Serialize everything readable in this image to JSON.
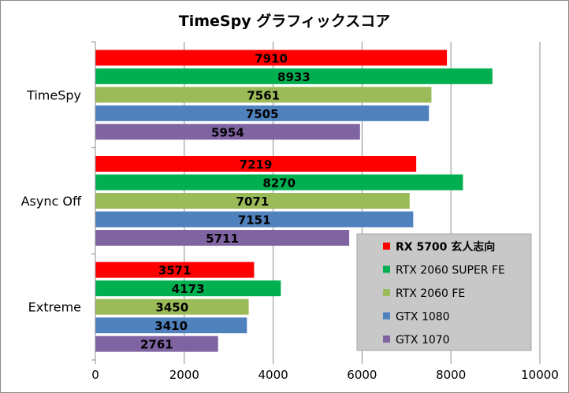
{
  "chart_data": {
    "type": "bar",
    "orientation": "horizontal",
    "title": "TimeSpy グラフィックスコア",
    "xlabel": "",
    "ylabel": "",
    "categories": [
      "TimeSpy",
      "Async Off",
      "Extreme"
    ],
    "xlim": [
      0,
      10000
    ],
    "x_ticks": [
      0,
      2000,
      4000,
      6000,
      8000,
      10000
    ],
    "grid": true,
    "legend_position": "bottom-right",
    "series": [
      {
        "name": "RX 5700 玄人志向",
        "color": "#ff0000",
        "bold": true,
        "values": [
          7910,
          7219,
          3571
        ]
      },
      {
        "name": "RTX 2060 SUPER FE",
        "color": "#00b050",
        "values": [
          8933,
          8270,
          4173
        ]
      },
      {
        "name": "RTX 2060 FE",
        "color": "#9bbb59",
        "values": [
          7561,
          7071,
          3450
        ]
      },
      {
        "name": "GTX 1080",
        "color": "#4f81bd",
        "values": [
          7505,
          7151,
          3410
        ]
      },
      {
        "name": "GTX 1070",
        "color": "#8064a2",
        "values": [
          5954,
          5711,
          2761
        ]
      }
    ]
  }
}
